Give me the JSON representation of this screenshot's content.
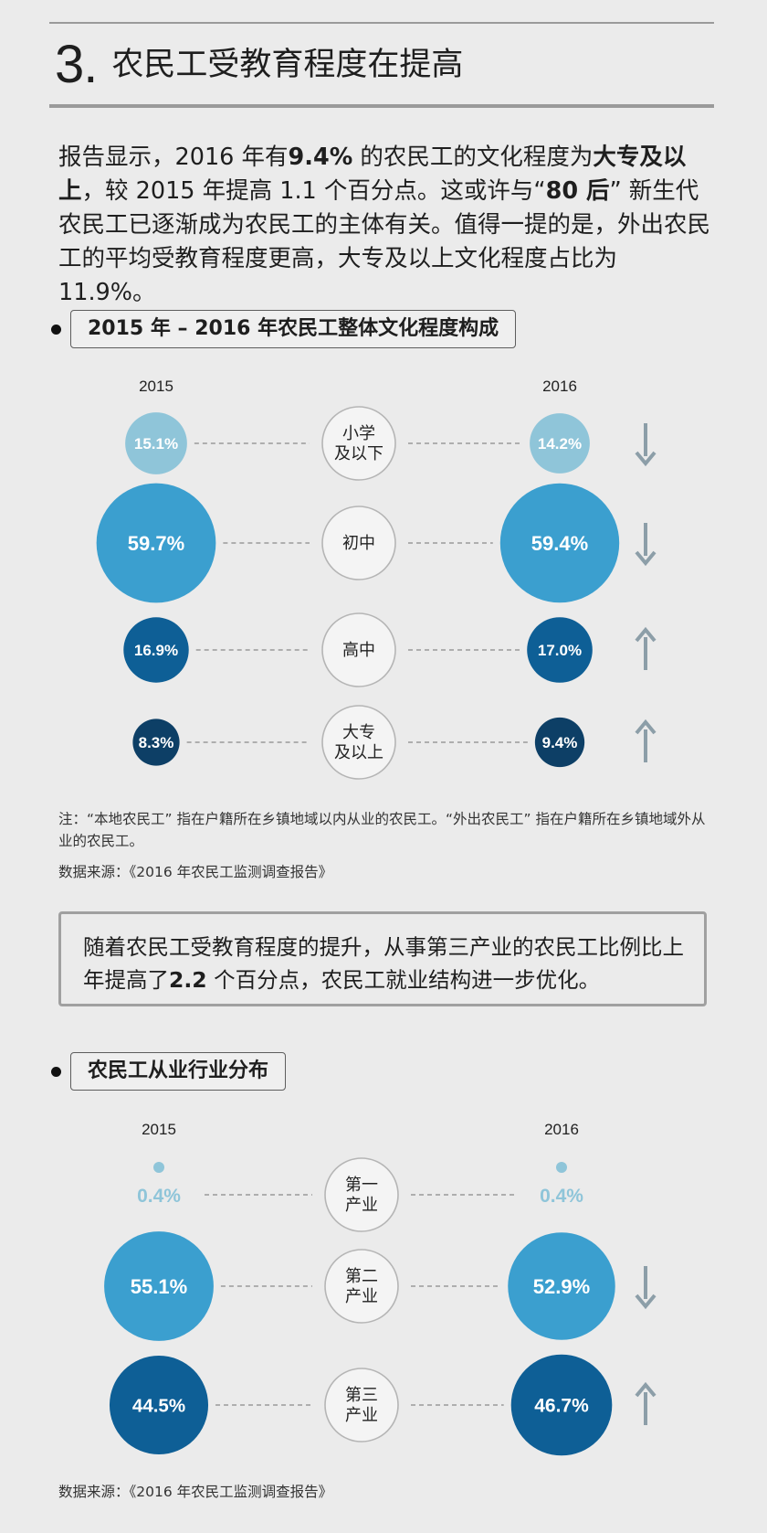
{
  "header": {
    "number": "3.",
    "title": "农民工受教育程度在提高"
  },
  "intro": {
    "p1": "报告显示，2016 年有",
    "b1": "9.4%",
    "p2": " 的农民工的文化程度为",
    "b2": "大专及以上",
    "p3": "，较 2015 年提高 1.1 个百分点。这或许与“",
    "b3": "80 后",
    "p4": "” 新生代农民工已逐渐成为农民工的主体有关。值得一提的是，外出农民工的平均受教育程度更高，大专及以上文化程度占比为 11.9%。"
  },
  "section1": {
    "heading": "2015 年 – 2016 年农民工整体文化程度构成",
    "note": "注：“本地农民工” 指在户籍所在乡镇地域以内从业的农民工。“外出农民工” 指在户籍所在乡镇地域外从业的农民工。",
    "source": "数据来源：《2016 年农民工监测调查报告》"
  },
  "callout": {
    "p1": "随着农民工受教育程度的提升，从事第三产业的农民工比例比上年提高了",
    "b1": "2.2",
    "p2": " 个百分点，农民工就业结构进一步优化。"
  },
  "section2": {
    "heading": "农民工从业行业分布",
    "source": "数据来源：《2016 年农民工监测调查报告》"
  },
  "colors": {
    "light": "#8fc5d9",
    "mid": "#3b9fcf",
    "dark": "#0e5f96",
    "navy": "#0d3f66",
    "arrow": "#8c9ea8"
  },
  "chart_data": [
    {
      "type": "bubble-comparison",
      "title": "2015 年 – 2016 年农民工整体文化程度构成",
      "years": [
        "2015",
        "2016"
      ],
      "unit": "%",
      "rows": [
        {
          "category": [
            "小学",
            "及以下"
          ],
          "v2015": 15.1,
          "v2016": 14.2,
          "label2015": "15.1%",
          "label2016": "14.2%",
          "trend": "down",
          "color": "light"
        },
        {
          "category": [
            "初中"
          ],
          "v2015": 59.7,
          "v2016": 59.4,
          "label2015": "59.7%",
          "label2016": "59.4%",
          "trend": "down",
          "color": "mid"
        },
        {
          "category": [
            "高中"
          ],
          "v2015": 16.9,
          "v2016": 17.0,
          "label2015": "16.9%",
          "label2016": "17.0%",
          "trend": "up",
          "color": "dark"
        },
        {
          "category": [
            "大专",
            "及以上"
          ],
          "v2015": 8.3,
          "v2016": 9.4,
          "label2015": "8.3%",
          "label2016": "9.4%",
          "trend": "up",
          "color": "navy"
        }
      ]
    },
    {
      "type": "bubble-comparison",
      "title": "农民工从业行业分布",
      "years": [
        "2015",
        "2016"
      ],
      "unit": "%",
      "rows": [
        {
          "category": [
            "第一",
            "产业"
          ],
          "v2015": 0.4,
          "v2016": 0.4,
          "label2015": "0.4%",
          "label2016": "0.4%",
          "trend": "none",
          "color": "light"
        },
        {
          "category": [
            "第二",
            "产业"
          ],
          "v2015": 55.1,
          "v2016": 52.9,
          "label2015": "55.1%",
          "label2016": "52.9%",
          "trend": "down",
          "color": "mid"
        },
        {
          "category": [
            "第三",
            "产业"
          ],
          "v2015": 44.5,
          "v2016": 46.7,
          "label2015": "44.5%",
          "label2016": "46.7%",
          "trend": "up",
          "color": "dark"
        }
      ]
    }
  ]
}
